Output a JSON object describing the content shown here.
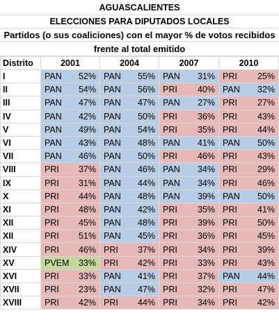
{
  "header": {
    "title": "AGUASCALIENTES",
    "subtitle": "ELECCIONES PARA DIPUTADOS LOCALES",
    "description_1": "Partidos (o sus coaliciones) con el mayor % de votos recibidos",
    "description_2": "frente al total emitido"
  },
  "party_colors": {
    "PAN": "#b8cce4",
    "PRI": "#e6b8b7",
    "PVEM": "#c4d79b"
  },
  "table": {
    "columns": [
      "Distrito",
      "2001",
      "2004",
      "2007",
      "2010"
    ],
    "rows": [
      {
        "district": "I",
        "cells": [
          {
            "party": "PAN",
            "pct": "52%"
          },
          {
            "party": "PAN",
            "pct": "55%"
          },
          {
            "party": "PAN",
            "pct": "31%"
          },
          {
            "party": "PRI",
            "pct": "25%"
          }
        ]
      },
      {
        "district": "II",
        "cells": [
          {
            "party": "PAN",
            "pct": "54%"
          },
          {
            "party": "PAN",
            "pct": "56%"
          },
          {
            "party": "PRI",
            "pct": "40%"
          },
          {
            "party": "PAN",
            "pct": "32%"
          }
        ]
      },
      {
        "district": "III",
        "cells": [
          {
            "party": "PAN",
            "pct": "47%"
          },
          {
            "party": "PAN",
            "pct": "47%"
          },
          {
            "party": "PAN",
            "pct": "27%"
          },
          {
            "party": "PRI",
            "pct": "27%"
          }
        ]
      },
      {
        "district": "IV",
        "cells": [
          {
            "party": "PAN",
            "pct": "42%"
          },
          {
            "party": "PAN",
            "pct": "50%"
          },
          {
            "party": "PRI",
            "pct": "36%"
          },
          {
            "party": "PRI",
            "pct": "43%"
          }
        ]
      },
      {
        "district": "V",
        "cells": [
          {
            "party": "PAN",
            "pct": "49%"
          },
          {
            "party": "PAN",
            "pct": "54%"
          },
          {
            "party": "PRI",
            "pct": "35%"
          },
          {
            "party": "PRI",
            "pct": "44%"
          }
        ]
      },
      {
        "district": "VI",
        "cells": [
          {
            "party": "PAN",
            "pct": "43%"
          },
          {
            "party": "PAN",
            "pct": "48%"
          },
          {
            "party": "PAN",
            "pct": "41%"
          },
          {
            "party": "PAN",
            "pct": "50%"
          }
        ]
      },
      {
        "district": "VII",
        "cells": [
          {
            "party": "PAN",
            "pct": "46%"
          },
          {
            "party": "PAN",
            "pct": "50%"
          },
          {
            "party": "PRI",
            "pct": "46%"
          },
          {
            "party": "PRI",
            "pct": "43%"
          }
        ]
      },
      {
        "district": "VIII",
        "cells": [
          {
            "party": "PRI",
            "pct": "37%"
          },
          {
            "party": "PAN",
            "pct": "46%"
          },
          {
            "party": "PAN",
            "pct": "34%"
          },
          {
            "party": "PRI",
            "pct": "29%"
          }
        ]
      },
      {
        "district": "IX",
        "cells": [
          {
            "party": "PRI",
            "pct": "31%"
          },
          {
            "party": "PAN",
            "pct": "44%"
          },
          {
            "party": "PAN",
            "pct": "34%"
          },
          {
            "party": "PRI",
            "pct": "46%"
          }
        ]
      },
      {
        "district": "X",
        "cells": [
          {
            "party": "PRI",
            "pct": "44%"
          },
          {
            "party": "PAN",
            "pct": "48%"
          },
          {
            "party": "PAN",
            "pct": "39%"
          },
          {
            "party": "PAN",
            "pct": "50%"
          }
        ]
      },
      {
        "district": "XI",
        "cells": [
          {
            "party": "PRI",
            "pct": "48%"
          },
          {
            "party": "PAN",
            "pct": "42%"
          },
          {
            "party": "PRI",
            "pct": "35%"
          },
          {
            "party": "PRI",
            "pct": "41%"
          }
        ]
      },
      {
        "district": "XII",
        "cells": [
          {
            "party": "PRI",
            "pct": "45%"
          },
          {
            "party": "PAN",
            "pct": "48%"
          },
          {
            "party": "PRI",
            "pct": "39%"
          },
          {
            "party": "PRI",
            "pct": "50%"
          }
        ]
      },
      {
        "district": "XII",
        "cells": [
          {
            "party": "PRI",
            "pct": "51%"
          },
          {
            "party": "PAN",
            "pct": "45%"
          },
          {
            "party": "PRI",
            "pct": "36%"
          },
          {
            "party": "PRI",
            "pct": "45%"
          }
        ]
      },
      {
        "district": "XIV",
        "cells": [
          {
            "party": "PRI",
            "pct": "46%"
          },
          {
            "party": "PRI",
            "pct": "37%"
          },
          {
            "party": "PRI",
            "pct": "34%"
          },
          {
            "party": "PRI",
            "pct": "39%"
          }
        ]
      },
      {
        "district": "XV",
        "cells": [
          {
            "party": "PVEM",
            "pct": "33%"
          },
          {
            "party": "PRI",
            "pct": "42%"
          },
          {
            "party": "PRI",
            "pct": "33%"
          },
          {
            "party": "PRI",
            "pct": "43%"
          }
        ]
      },
      {
        "district": "XVI",
        "cells": [
          {
            "party": "PRI",
            "pct": "33%"
          },
          {
            "party": "PAN",
            "pct": "41%"
          },
          {
            "party": "PRI",
            "pct": "37%"
          },
          {
            "party": "PAN",
            "pct": "44%"
          }
        ]
      },
      {
        "district": "XVII",
        "cells": [
          {
            "party": "PRI",
            "pct": "23%"
          },
          {
            "party": "PAN",
            "pct": "47%"
          },
          {
            "party": "PRI",
            "pct": "32%"
          },
          {
            "party": "PRI",
            "pct": "47%"
          }
        ]
      },
      {
        "district": "XVIII",
        "cells": [
          {
            "party": "PRI",
            "pct": "42%"
          },
          {
            "party": "PRI",
            "pct": "44%"
          },
          {
            "party": "PRI",
            "pct": "34%"
          },
          {
            "party": "PRI",
            "pct": "42%"
          }
        ]
      }
    ]
  }
}
